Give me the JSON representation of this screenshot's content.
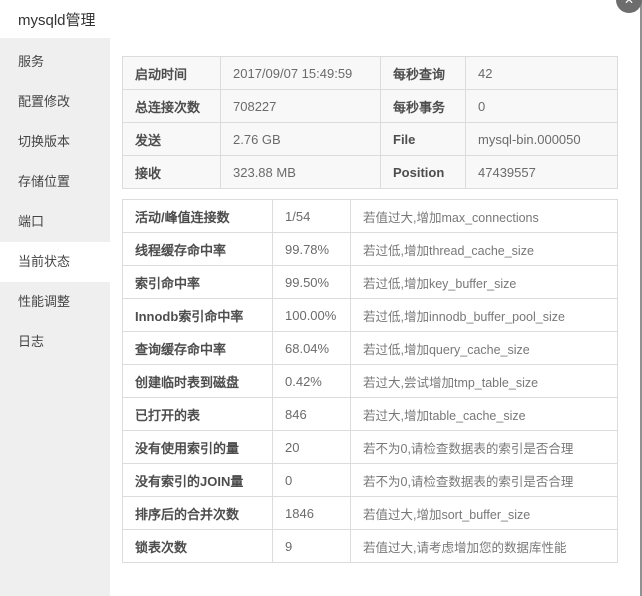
{
  "window": {
    "title": "mysqld管理",
    "close_icon": "✕"
  },
  "colors": {
    "sidebar_bg": "#efefef",
    "selected_item_bg": "#ffffff",
    "status_table_bg": "#f8f8f8",
    "table_border": "#dcdcdc",
    "window_border": "#919191",
    "close_button_bg": "#6d6d6d"
  },
  "sidebar": {
    "items": [
      {
        "label": "服务",
        "selected": false
      },
      {
        "label": "配置修改",
        "selected": false
      },
      {
        "label": "切换版本",
        "selected": false
      },
      {
        "label": "存储位置",
        "selected": false
      },
      {
        "label": "端口",
        "selected": false
      },
      {
        "label": "当前状态",
        "selected": true
      },
      {
        "label": "性能调整",
        "selected": false
      },
      {
        "label": "日志",
        "selected": false
      }
    ]
  },
  "status_table": {
    "rows": [
      {
        "label": "启动时间",
        "value": "2017/09/07 15:49:59",
        "label2": "每秒查询",
        "value2": "42"
      },
      {
        "label": "总连接次数",
        "value": "708227",
        "label2": "每秒事务",
        "value2": "0"
      },
      {
        "label": "发送",
        "value": "2.76 GB",
        "label2": "File",
        "value2": "mysql-bin.000050"
      },
      {
        "label": "接收",
        "value": "323.88 MB",
        "label2": "Position",
        "value2": "47439557"
      }
    ]
  },
  "metrics_table": {
    "rows": [
      {
        "label": "活动/峰值连接数",
        "value": "1/54",
        "hint": "若值过大,增加max_connections"
      },
      {
        "label": "线程缓存命中率",
        "value": "99.78%",
        "hint": "若过低,增加thread_cache_size"
      },
      {
        "label": "索引命中率",
        "value": "99.50%",
        "hint": "若过低,增加key_buffer_size"
      },
      {
        "label": "Innodb索引命中率",
        "value": "100.00%",
        "hint": "若过低,增加innodb_buffer_pool_size"
      },
      {
        "label": "查询缓存命中率",
        "value": "68.04%",
        "hint": "若过低,增加query_cache_size"
      },
      {
        "label": "创建临时表到磁盘",
        "value": "0.42%",
        "hint": "若过大,尝试增加tmp_table_size"
      },
      {
        "label": "已打开的表",
        "value": "846",
        "hint": "若过大,增加table_cache_size"
      },
      {
        "label": "没有使用索引的量",
        "value": "20",
        "hint": "若不为0,请检查数据表的索引是否合理"
      },
      {
        "label": "没有索引的JOIN量",
        "value": "0",
        "hint": "若不为0,请检查数据表的索引是否合理"
      },
      {
        "label": "排序后的合并次数",
        "value": "1846",
        "hint": "若值过大,增加sort_buffer_size"
      },
      {
        "label": "锁表次数",
        "value": "9",
        "hint": "若值过大,请考虑增加您的数据库性能"
      }
    ]
  }
}
